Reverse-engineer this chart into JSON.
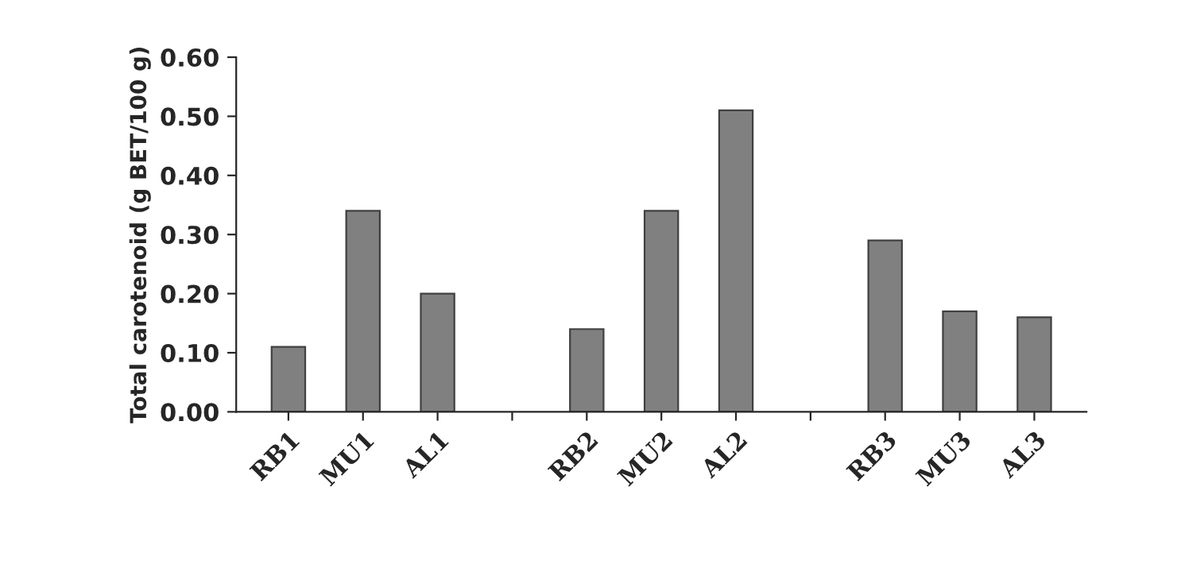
{
  "chart_data": {
    "type": "bar",
    "ylabel": "Total carotenoid (g BET/100 g)",
    "categories": [
      "RB1",
      "MU1",
      "AL1",
      null,
      "RB2",
      "MU2",
      "AL2",
      null,
      "RB3",
      "MU3",
      "AL3"
    ],
    "values": [
      0.11,
      0.34,
      0.2,
      null,
      0.14,
      0.34,
      0.51,
      null,
      0.29,
      0.17,
      0.16
    ],
    "color": "#808080",
    "ylim": [
      0,
      0.6
    ],
    "yticks": [
      {
        "value": 0,
        "label": "0.00"
      },
      {
        "value": 0.1,
        "label": "0.10"
      },
      {
        "value": 0.2,
        "label": "0.20"
      },
      {
        "value": 0.3,
        "label": "0.30"
      },
      {
        "value": 0.4,
        "label": "0.40"
      },
      {
        "value": 0.5,
        "label": "0.50"
      },
      {
        "value": 0.6,
        "label": "0.60"
      }
    ],
    "grid": false
  }
}
